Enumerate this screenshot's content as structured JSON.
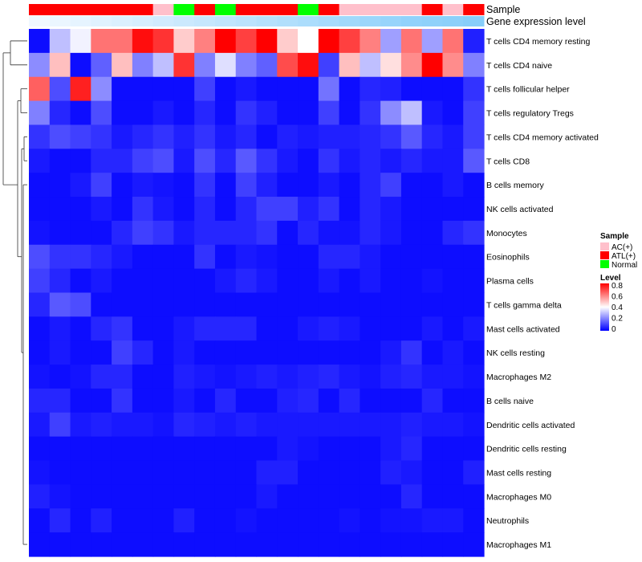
{
  "chart_data": {
    "type": "heatmap",
    "title": "",
    "column_annotations": [
      {
        "name": "Sample",
        "values": [
          "ATL(+)",
          "ATL(+)",
          "ATL(+)",
          "ATL(+)",
          "ATL(+)",
          "ATL(+)",
          "AC(+)",
          "Normal",
          "ATL(+)",
          "Normal",
          "ATL(+)",
          "ATL(+)",
          "ATL(+)",
          "Normal",
          "ATL(+)",
          "AC(+)",
          "AC(+)",
          "AC(+)",
          "AC(+)",
          "ATL(+)",
          "AC(+)",
          "ATL(+)"
        ]
      },
      {
        "name": "Gene expression level",
        "values": [
          0.0,
          0.05,
          0.1,
          0.15,
          0.2,
          0.25,
          0.3,
          0.35,
          0.4,
          0.45,
          0.5,
          0.55,
          0.6,
          0.65,
          0.7,
          0.75,
          0.8,
          0.85,
          0.9,
          0.92,
          0.95,
          1.0
        ]
      }
    ],
    "rows": [
      "T cells CD4 memory resting",
      "T cells CD4 naive",
      "T cells follicular helper",
      "T cells regulatory  Tregs",
      "T cells CD4 memory activated",
      "T cells CD8",
      "B cells memory",
      "NK cells activated",
      "Monocytes",
      "Eosinophils",
      "Plasma cells",
      "T cells gamma delta",
      "Mast cells activated",
      "NK cells resting",
      "Macrophages M2",
      "B cells naive",
      "Dendritic cells activated",
      "Dendritic cells resting",
      "Mast cells resting",
      "Macrophages M0",
      "Neutrophils",
      "Macrophages M1"
    ],
    "values": [
      [
        0.02,
        0.3,
        0.38,
        0.62,
        0.62,
        0.78,
        0.72,
        0.48,
        0.6,
        0.8,
        0.7,
        0.8,
        0.48,
        0.4,
        0.8,
        0.7,
        0.6,
        0.25,
        0.62,
        0.25,
        0.62,
        0.05
      ],
      [
        0.22,
        0.5,
        0.02,
        0.15,
        0.5,
        0.2,
        0.3,
        0.72,
        0.2,
        0.35,
        0.2,
        0.15,
        0.68,
        0.78,
        0.1,
        0.5,
        0.3,
        0.45,
        0.58,
        0.8,
        0.58,
        0.2
      ],
      [
        0.65,
        0.12,
        0.75,
        0.22,
        0.02,
        0.02,
        0.02,
        0.02,
        0.1,
        0.02,
        0.04,
        0.02,
        0.02,
        0.02,
        0.18,
        0.02,
        0.06,
        0.05,
        0.02,
        0.02,
        0.02,
        0.08
      ],
      [
        0.2,
        0.06,
        0.02,
        0.12,
        0.02,
        0.02,
        0.04,
        0.02,
        0.06,
        0.02,
        0.08,
        0.05,
        0.02,
        0.02,
        0.1,
        0.02,
        0.08,
        0.22,
        0.3,
        0.04,
        0.02,
        0.1
      ],
      [
        0.08,
        0.12,
        0.1,
        0.08,
        0.04,
        0.06,
        0.08,
        0.05,
        0.08,
        0.04,
        0.06,
        0.02,
        0.05,
        0.04,
        0.05,
        0.05,
        0.06,
        0.08,
        0.14,
        0.06,
        0.04,
        0.1
      ],
      [
        0.04,
        0.02,
        0.02,
        0.06,
        0.06,
        0.1,
        0.12,
        0.04,
        0.12,
        0.06,
        0.14,
        0.08,
        0.04,
        0.02,
        0.08,
        0.04,
        0.06,
        0.04,
        0.06,
        0.04,
        0.04,
        0.14
      ],
      [
        0.02,
        0.02,
        0.04,
        0.1,
        0.02,
        0.04,
        0.03,
        0.02,
        0.08,
        0.02,
        0.1,
        0.05,
        0.02,
        0.02,
        0.04,
        0.02,
        0.06,
        0.1,
        0.02,
        0.02,
        0.04,
        0.02
      ],
      [
        0.02,
        0.02,
        0.02,
        0.04,
        0.02,
        0.08,
        0.04,
        0.02,
        0.06,
        0.02,
        0.06,
        0.1,
        0.1,
        0.05,
        0.08,
        0.02,
        0.06,
        0.04,
        0.02,
        0.02,
        0.02,
        0.02
      ],
      [
        0.03,
        0.02,
        0.02,
        0.02,
        0.06,
        0.1,
        0.08,
        0.04,
        0.06,
        0.06,
        0.06,
        0.08,
        0.02,
        0.06,
        0.03,
        0.03,
        0.06,
        0.04,
        0.02,
        0.02,
        0.06,
        0.08
      ],
      [
        0.12,
        0.08,
        0.08,
        0.06,
        0.04,
        0.02,
        0.02,
        0.02,
        0.08,
        0.02,
        0.04,
        0.03,
        0.02,
        0.02,
        0.06,
        0.06,
        0.04,
        0.02,
        0.02,
        0.02,
        0.02,
        0.02
      ],
      [
        0.1,
        0.06,
        0.02,
        0.04,
        0.02,
        0.02,
        0.02,
        0.02,
        0.02,
        0.04,
        0.06,
        0.04,
        0.02,
        0.02,
        0.04,
        0.02,
        0.04,
        0.02,
        0.02,
        0.03,
        0.02,
        0.02
      ],
      [
        0.06,
        0.14,
        0.12,
        0.02,
        0.02,
        0.02,
        0.02,
        0.02,
        0.02,
        0.02,
        0.02,
        0.02,
        0.02,
        0.02,
        0.02,
        0.02,
        0.02,
        0.02,
        0.02,
        0.02,
        0.02,
        0.02
      ],
      [
        0.02,
        0.04,
        0.02,
        0.06,
        0.08,
        0.02,
        0.02,
        0.04,
        0.06,
        0.06,
        0.06,
        0.02,
        0.02,
        0.04,
        0.05,
        0.04,
        0.02,
        0.02,
        0.02,
        0.04,
        0.02,
        0.04
      ],
      [
        0.02,
        0.04,
        0.02,
        0.02,
        0.1,
        0.06,
        0.02,
        0.04,
        0.02,
        0.02,
        0.02,
        0.02,
        0.02,
        0.02,
        0.02,
        0.02,
        0.02,
        0.04,
        0.08,
        0.02,
        0.04,
        0.02
      ],
      [
        0.03,
        0.02,
        0.03,
        0.06,
        0.06,
        0.02,
        0.02,
        0.05,
        0.04,
        0.03,
        0.04,
        0.05,
        0.04,
        0.05,
        0.06,
        0.04,
        0.03,
        0.05,
        0.06,
        0.04,
        0.04,
        0.03
      ],
      [
        0.06,
        0.06,
        0.02,
        0.02,
        0.08,
        0.02,
        0.02,
        0.04,
        0.02,
        0.06,
        0.02,
        0.02,
        0.05,
        0.06,
        0.02,
        0.06,
        0.02,
        0.02,
        0.02,
        0.06,
        0.02,
        0.02
      ],
      [
        0.04,
        0.1,
        0.04,
        0.05,
        0.04,
        0.04,
        0.03,
        0.06,
        0.05,
        0.04,
        0.05,
        0.04,
        0.04,
        0.04,
        0.04,
        0.04,
        0.04,
        0.04,
        0.05,
        0.04,
        0.04,
        0.03
      ],
      [
        0.02,
        0.02,
        0.02,
        0.02,
        0.02,
        0.02,
        0.02,
        0.02,
        0.02,
        0.02,
        0.02,
        0.02,
        0.04,
        0.03,
        0.02,
        0.02,
        0.02,
        0.04,
        0.06,
        0.02,
        0.02,
        0.02
      ],
      [
        0.03,
        0.02,
        0.02,
        0.02,
        0.02,
        0.02,
        0.02,
        0.02,
        0.02,
        0.02,
        0.02,
        0.05,
        0.05,
        0.02,
        0.02,
        0.02,
        0.02,
        0.05,
        0.04,
        0.02,
        0.02,
        0.05
      ],
      [
        0.05,
        0.03,
        0.02,
        0.02,
        0.02,
        0.02,
        0.02,
        0.02,
        0.02,
        0.02,
        0.02,
        0.04,
        0.02,
        0.02,
        0.02,
        0.02,
        0.02,
        0.02,
        0.06,
        0.02,
        0.02,
        0.02
      ],
      [
        0.02,
        0.06,
        0.02,
        0.05,
        0.02,
        0.02,
        0.02,
        0.05,
        0.02,
        0.02,
        0.03,
        0.02,
        0.02,
        0.02,
        0.02,
        0.03,
        0.02,
        0.03,
        0.03,
        0.04,
        0.04,
        0.02
      ],
      [
        0.02,
        0.02,
        0.02,
        0.02,
        0.02,
        0.02,
        0.02,
        0.02,
        0.02,
        0.02,
        0.02,
        0.02,
        0.02,
        0.02,
        0.02,
        0.02,
        0.02,
        0.02,
        0.02,
        0.02,
        0.02,
        0.02
      ]
    ],
    "color_scale": {
      "min": 0,
      "max": 0.8,
      "low": "#0000ff",
      "mid": "#ffffff",
      "high": "#ff0000",
      "mid_value": 0.4
    },
    "legends": {
      "sample": {
        "title": "Sample",
        "items": [
          {
            "label": "AC(+)",
            "color": "#ffc0cb"
          },
          {
            "label": "ATL(+)",
            "color": "#ff0000"
          },
          {
            "label": "Normal",
            "color": "#00ff00"
          }
        ]
      },
      "level": {
        "title": "Level",
        "ticks": [
          "0.8",
          "0.6",
          "0.4",
          "0.2",
          "0"
        ],
        "tick_values": [
          0.8,
          0.6,
          0.4,
          0.2,
          0.0
        ]
      }
    },
    "dendrogram": "row clustering (left side)"
  }
}
